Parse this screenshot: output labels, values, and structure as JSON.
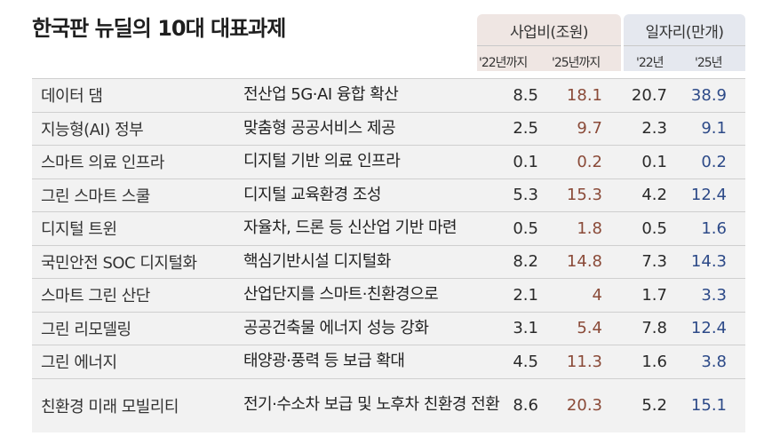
{
  "title": "한국판 뉴딜의 10대 대표과제",
  "header": {
    "money_title": "사업비(조원)",
    "jobs_title": "일자리(만개)",
    "money_sub1": "'22년까지",
    "money_sub2": "'25년까지",
    "jobs_sub1": "'22년",
    "jobs_sub2": "'25년"
  },
  "colors": {
    "money_header_bg": "#efe6e3",
    "jobs_header_bg": "#e5e8ef",
    "money_2025": "#8a4a38",
    "jobs_2025": "#2d4a88"
  },
  "rows": [
    {
      "name": "데이터 댐",
      "task": "전산업 5G·AI 융합 확산",
      "m22": "8.5",
      "m25": "18.1",
      "j22": "20.7",
      "j25": "38.9"
    },
    {
      "name": "지능형(AI) 정부",
      "task": "맞춤형 공공서비스 제공",
      "m22": "2.5",
      "m25": "9.7",
      "j22": "2.3",
      "j25": "9.1"
    },
    {
      "name": "스마트 의료 인프라",
      "task": "디지털 기반 의료 인프라",
      "m22": "0.1",
      "m25": "0.2",
      "j22": "0.1",
      "j25": "0.2"
    },
    {
      "name": "그린 스마트 스쿨",
      "task": "디지털 교육환경 조성",
      "m22": "5.3",
      "m25": "15.3",
      "j22": "4.2",
      "j25": "12.4"
    },
    {
      "name": "디지털 트윈",
      "task": "자율차, 드론 등 신산업 기반 마련",
      "m22": "0.5",
      "m25": "1.8",
      "j22": "0.5",
      "j25": "1.6"
    },
    {
      "name": "국민안전 SOC 디지털화",
      "task": "핵심기반시설 디지털화",
      "m22": "8.2",
      "m25": "14.8",
      "j22": "7.3",
      "j25": "14.3"
    },
    {
      "name": "스마트 그린 산단",
      "task": "산업단지를 스마트·친환경으로",
      "m22": "2.1",
      "m25": "4",
      "j22": "1.7",
      "j25": "3.3"
    },
    {
      "name": "그린 리모델링",
      "task": "공공건축물 에너지 성능 강화",
      "m22": "3.1",
      "m25": "5.4",
      "j22": "7.8",
      "j25": "12.4"
    },
    {
      "name": "그린 에너지",
      "task": "태양광·풍력 등 보급 확대",
      "m22": "4.5",
      "m25": "11.3",
      "j22": "1.6",
      "j25": "3.8"
    },
    {
      "name": "친환경 미래 모빌리티",
      "task": "전기·수소차 보급 및 노후차 친환경 전환",
      "m22": "8.6",
      "m25": "20.3",
      "j22": "5.2",
      "j25": "15.1"
    }
  ]
}
